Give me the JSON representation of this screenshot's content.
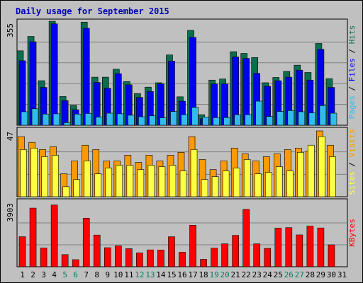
{
  "chart_data": {
    "type": "bar",
    "title": "Daily usage for September 2015",
    "x": [
      "1",
      "2",
      "3",
      "4",
      "5",
      "6",
      "7",
      "8",
      "9",
      "10",
      "11",
      "12",
      "13",
      "14",
      "15",
      "16",
      "17",
      "18",
      "19",
      "20",
      "21",
      "22",
      "23",
      "24",
      "25",
      "26",
      "27",
      "28",
      "29",
      "30",
      "31"
    ],
    "weekend_days": [
      "5",
      "6",
      "12",
      "13",
      "19",
      "20",
      "26",
      "27"
    ],
    "panels": [
      {
        "id": "top",
        "ymax_label": "355",
        "ymax": 355,
        "side_label": [
          "Pages",
          " / ",
          "Files",
          " / ",
          "Hits"
        ],
        "series": [
          {
            "name": "Hits",
            "color": "#0b6e4f",
            "values": [
              254,
              303,
              152,
              355,
              98,
              68,
              352,
              164,
              164,
              191,
              149,
              108,
              130,
              145,
              240,
              97,
              324,
              36,
              154,
              158,
              251,
              245,
              231,
              145,
              163,
              184,
              205,
              180,
              279,
              159,
              0
            ]
          },
          {
            "name": "Files",
            "color": "#0000ee",
            "values": [
              220,
              285,
              129,
              346,
              84,
              53,
              331,
              146,
              126,
              176,
              138,
              95,
              115,
              141,
              219,
              82,
              300,
              22,
              141,
              141,
              233,
              228,
              177,
              133,
              152,
              164,
              188,
              154,
              259,
              129,
              0
            ]
          },
          {
            "name": "Pages",
            "color": "#33bbee",
            "values": [
              46,
              56,
              38,
              39,
              9,
              38,
              40,
              28,
              41,
              39,
              34,
              29,
              32,
              25,
              47,
              36,
              61,
              28,
              26,
              26,
              36,
              36,
              82,
              30,
              47,
              50,
              46,
              42,
              67,
              41,
              0
            ]
          }
        ]
      },
      {
        "id": "middle",
        "ymax_label": "47",
        "ymax": 47,
        "side_label": [
          "Sites",
          " / ",
          "Visits"
        ],
        "series": [
          {
            "name": "Visits",
            "color": "#ff9900",
            "values": [
              42,
              38,
              33,
              35,
              16,
              25,
              36,
              33,
              25,
              25,
              29,
              24,
              29,
              25,
              29,
              31,
              42,
              26,
              19,
              25,
              34,
              30,
              25,
              28,
              30,
              33,
              34,
              32,
              46,
              36,
              0
            ]
          },
          {
            "name": "Sites",
            "color": "#ffff44",
            "values": [
              33,
              34,
              28,
              29,
              7,
              12,
              25,
              16,
              20,
              22,
              22,
              19,
              22,
              21,
              22,
              18,
              33,
              12,
              14,
              18,
              20,
              26,
              16,
              17,
              21,
              18,
              31,
              36,
              42,
              28,
              0
            ]
          }
        ]
      },
      {
        "id": "bottom",
        "ymax_label": "3903",
        "ymax": 3903,
        "side_label": [
          "KBytes"
        ],
        "series": [
          {
            "name": "KBytes",
            "color": "#ff0000",
            "values": [
              1780,
              3480,
              1110,
              3660,
              720,
              420,
              2880,
              1880,
              1130,
              1240,
              1070,
              820,
              1000,
              990,
              1780,
              860,
              2460,
              440,
              1100,
              1360,
              1860,
              3400,
              1360,
              1090,
              2290,
              2320,
              1890,
              2410,
              2300,
              1300,
              0
            ]
          }
        ]
      }
    ]
  },
  "colors": {
    "background": "#c0c0c0",
    "frame": "#000000",
    "title": "#0000bb",
    "weekday_label": "#000000",
    "weekend_label": "#008060",
    "gridline": "#808080"
  }
}
